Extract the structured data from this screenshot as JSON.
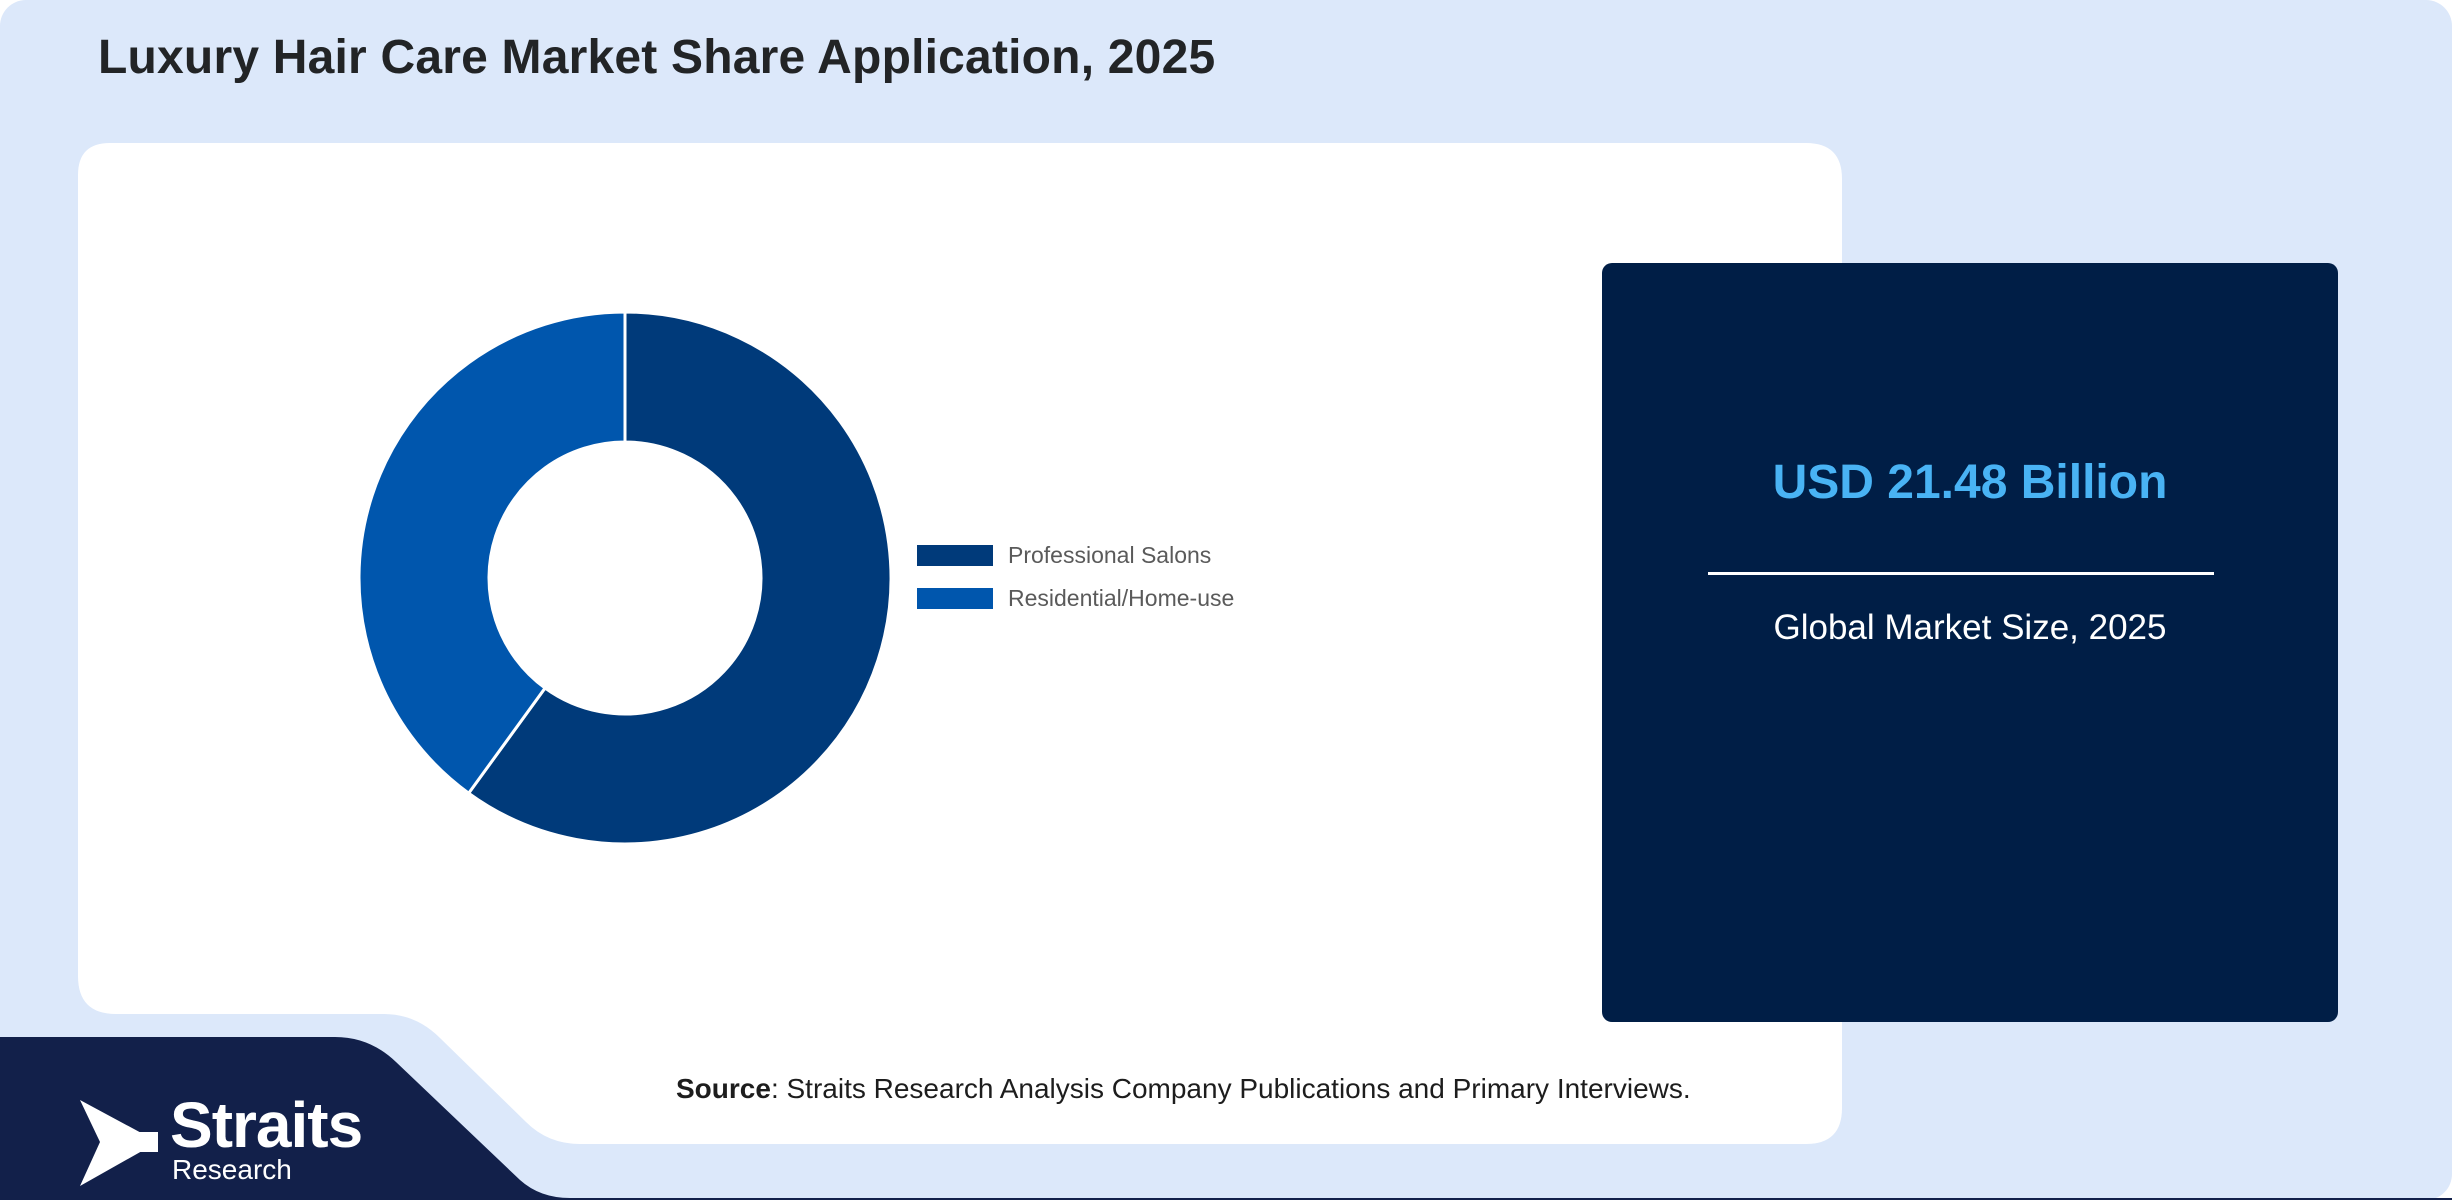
{
  "title": "Luxury Hair Care Market Share Application, 2025",
  "colors": {
    "page_background": "#dce8fa",
    "panel": "#ffffff",
    "footer": "#12204a",
    "kpi_background": "#001e46",
    "kpi_value": "#49b3f4"
  },
  "chart_data": {
    "type": "pie",
    "variant": "donut",
    "legend_position": "right",
    "series": [
      {
        "name": "Professional Salons",
        "value": 60,
        "color": "#003a7a"
      },
      {
        "name": "Residential/Home-use",
        "value": 40,
        "color": "#0056ad"
      }
    ]
  },
  "kpi": {
    "value": "USD 21.48 Billion",
    "label": "Global Market Size, 2025"
  },
  "source": {
    "label": "Source",
    "text": ": Straits Research Analysis Company Publications and Primary Interviews."
  },
  "logo": {
    "name": "Straits",
    "subtitle": "Research",
    "icon": "straits-arrow-icon"
  }
}
